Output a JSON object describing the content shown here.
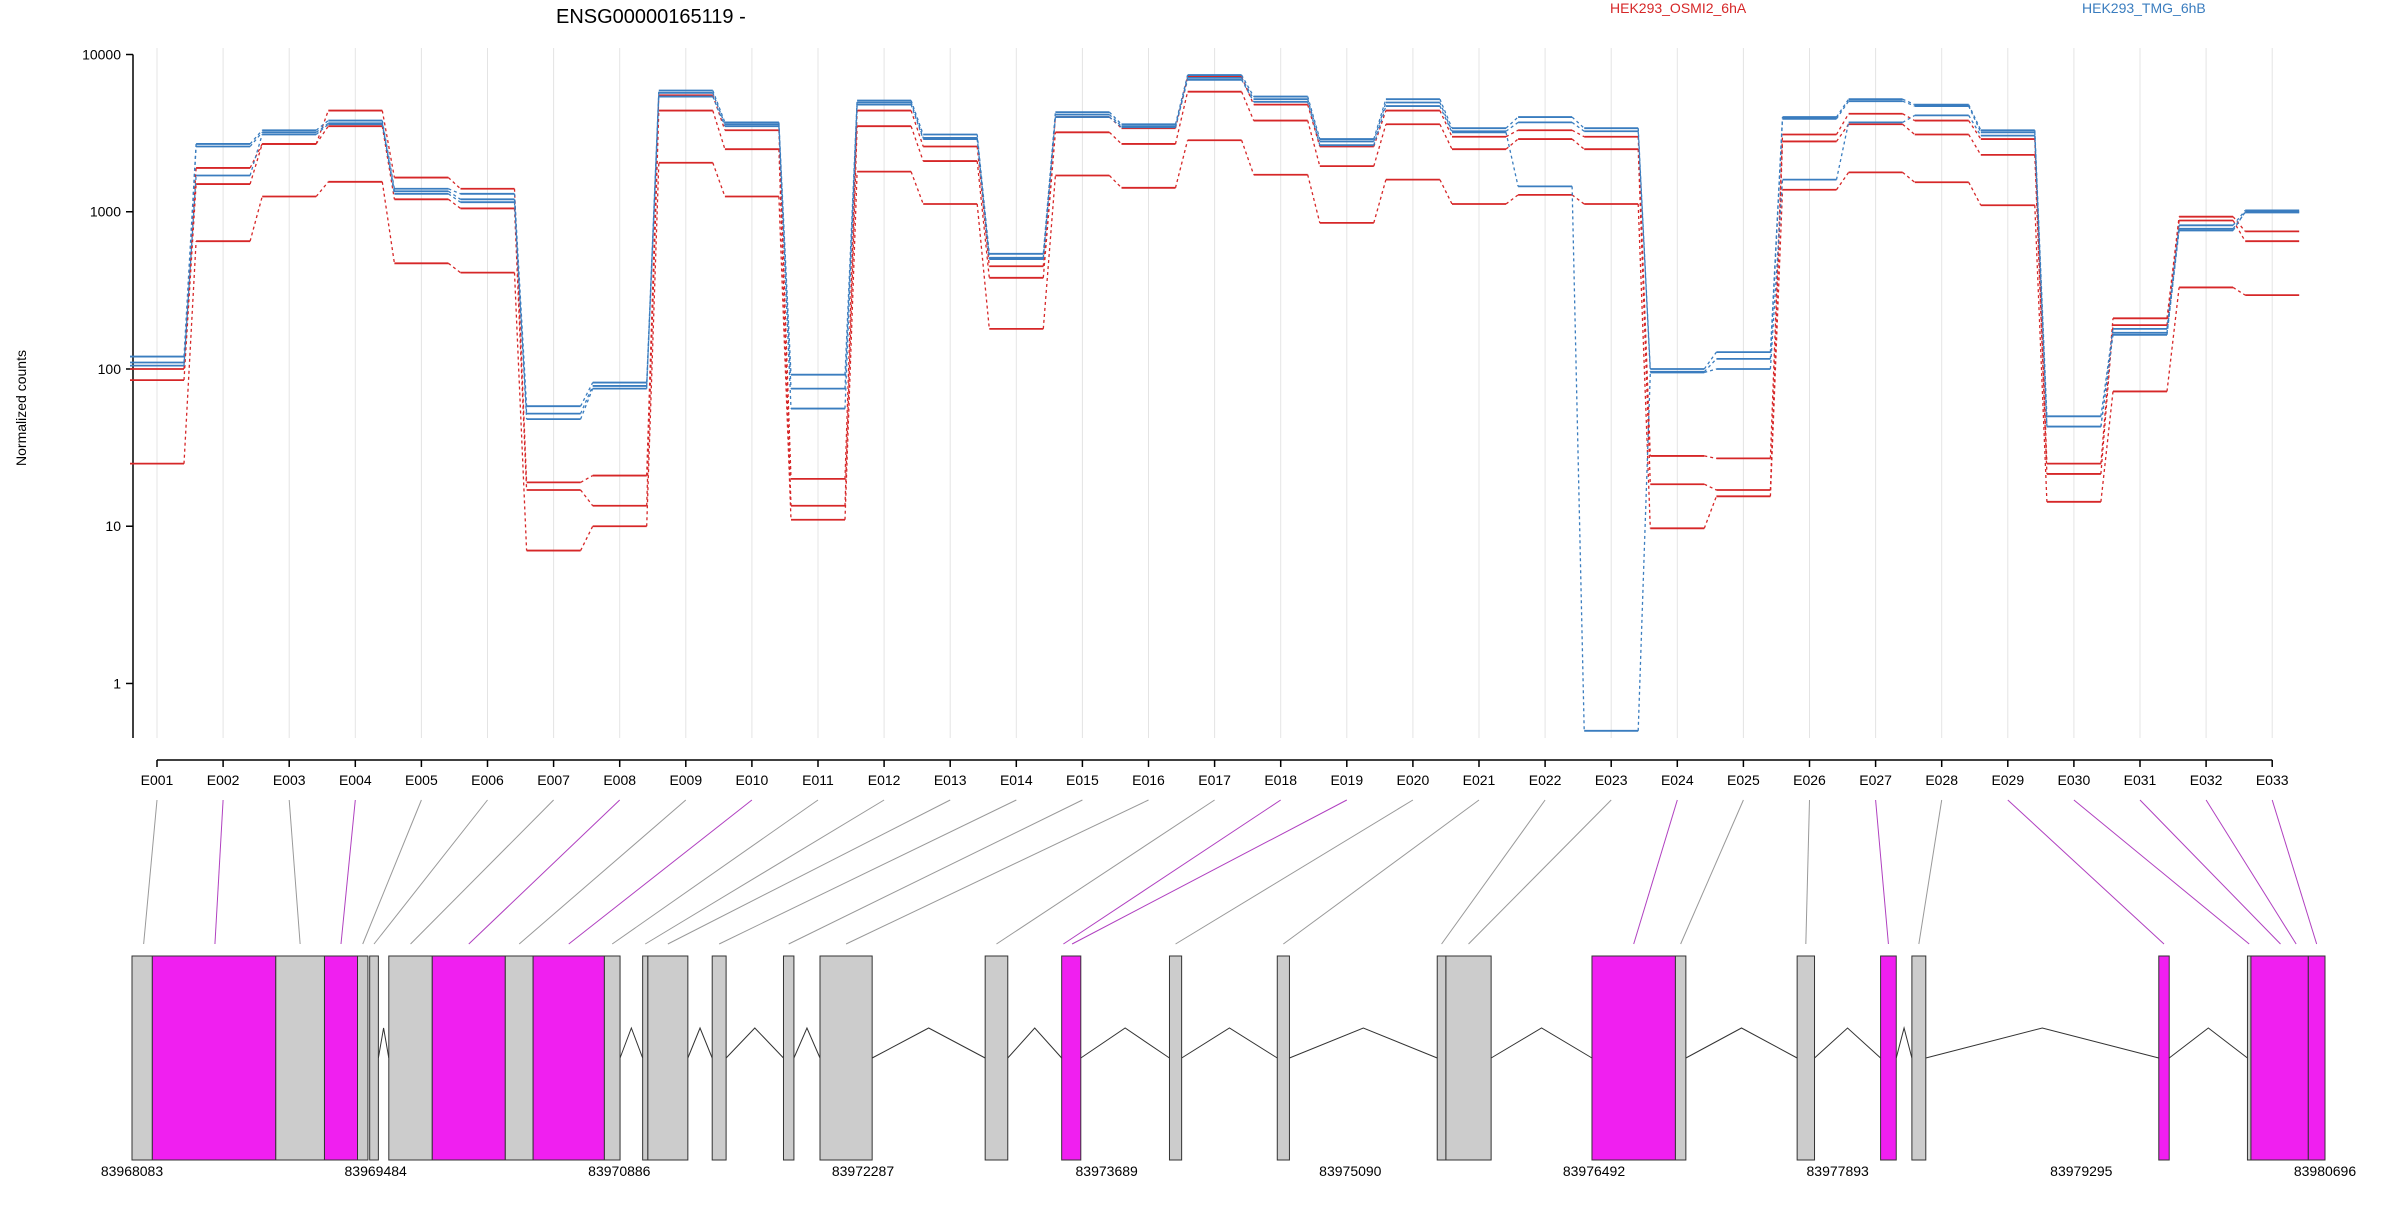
{
  "title": "ENSG00000165119 -",
  "legend": [
    {
      "name": "HEK293_OSMI2_6hA",
      "color": "#d62728"
    },
    {
      "name": "HEK293_TMG_6hB",
      "color": "#3a7dbf"
    }
  ],
  "colors": {
    "osmi": "#d62728",
    "tmg": "#3a7dbf",
    "exon_highlight": "#f01ff0",
    "exon_normal": "#cccccc",
    "grid": "#e4e4e4"
  },
  "chart_data": {
    "type": "line",
    "ylabel": "Normalized counts",
    "yscale": "log",
    "ylim": [
      0.45,
      11000
    ],
    "yticks": [
      {
        "value": 1,
        "label": "1"
      },
      {
        "value": 10,
        "label": "10"
      },
      {
        "value": 100,
        "label": "100"
      },
      {
        "value": 1000,
        "label": "1000"
      },
      {
        "value": 10000,
        "label": "10000"
      }
    ],
    "grid": "vertical",
    "categories": [
      "E001",
      "E002",
      "E003",
      "E004",
      "E005",
      "E006",
      "E007",
      "E008",
      "E009",
      "E010",
      "E011",
      "E012",
      "E013",
      "E014",
      "E015",
      "E016",
      "E017",
      "E018",
      "E019",
      "E020",
      "E021",
      "E022",
      "E023",
      "E024",
      "E025",
      "E026",
      "E027",
      "E028",
      "E029",
      "E030",
      "E031",
      "E032",
      "E033"
    ],
    "series": [
      {
        "group": "HEK293_OSMI2_6hA",
        "values": [
          100,
          1900,
          2700,
          4400,
          1650,
          1400,
          19,
          21,
          5500,
          3300,
          20,
          4400,
          2600,
          450,
          4000,
          3400,
          7200,
          4800,
          2600,
          4400,
          3000,
          3300,
          3000,
          28,
          27,
          3100,
          4200,
          3800,
          2900,
          25,
          210,
          930,
          750
        ]
      },
      {
        "group": "HEK293_OSMI2_6hA",
        "values": [
          85,
          1500,
          2700,
          3500,
          1200,
          1050,
          17,
          13.5,
          4400,
          2500,
          13.5,
          3500,
          2100,
          380,
          3200,
          2700,
          5800,
          3800,
          1950,
          3600,
          2500,
          2900,
          2500,
          18.5,
          17,
          2800,
          3600,
          3100,
          2300,
          21.5,
          190,
          880,
          650
        ]
      },
      {
        "group": "HEK293_OSMI2_6hA",
        "values": [
          25,
          650,
          1250,
          1550,
          470,
          410,
          7,
          10,
          2050,
          1250,
          11,
          1800,
          1120,
          180,
          1700,
          1420,
          2850,
          1720,
          850,
          1600,
          1120,
          1280,
          1120,
          9.7,
          15.5,
          1380,
          1780,
          1540,
          1100,
          14.3,
          72,
          330,
          295
        ]
      },
      {
        "group": "HEK293_TMG_6hB",
        "values": [
          120,
          2700,
          3300,
          3800,
          1400,
          1300,
          58,
          82,
          5900,
          3700,
          92,
          5100,
          3100,
          540,
          4300,
          3600,
          7400,
          5400,
          2900,
          5200,
          3400,
          4000,
          3400,
          100,
          128,
          4000,
          5200,
          4800,
          3300,
          50,
          180,
          820,
          1020
        ]
      },
      {
        "group": "HEK293_TMG_6hB",
        "values": [
          110,
          2600,
          3200,
          3650,
          1350,
          1200,
          52,
          78,
          5700,
          3600,
          75,
          4950,
          2950,
          500,
          4150,
          3500,
          7100,
          5200,
          2800,
          4950,
          3250,
          3700,
          3250,
          96,
          116,
          3900,
          5050,
          4700,
          3200,
          43,
          170,
          780,
          990
        ]
      },
      {
        "group": "HEK293_TMG_6hB",
        "values": [
          105,
          1700,
          3100,
          3600,
          1300,
          1150,
          48,
          75,
          5400,
          3500,
          56,
          4800,
          2900,
          510,
          4000,
          3450,
          6900,
          5000,
          2650,
          4700,
          3200,
          1450,
          0.5,
          95,
          100,
          1600,
          3700,
          4100,
          3050,
          43,
          165,
          760,
          1000
        ]
      }
    ],
    "exon_labels": [
      "E001",
      "E002",
      "E003",
      "E004",
      "E005",
      "E006",
      "E007",
      "E008",
      "E009",
      "E010",
      "E011",
      "E012",
      "E013",
      "E014",
      "E015",
      "E016",
      "E017",
      "E018",
      "E019",
      "E020",
      "E021",
      "E022",
      "E023",
      "E024",
      "E025",
      "E026",
      "E027",
      "E028",
      "E029",
      "E030",
      "E031",
      "E032",
      "E033"
    ],
    "genome_range": [
      83968083,
      83980696
    ],
    "genome_ticks": [
      "83968083",
      "83969484",
      "83970886",
      "83972287",
      "83973689",
      "83975090",
      "83976492",
      "83977893",
      "83979295",
      "83980696"
    ],
    "exons": [
      {
        "start": 83968083,
        "end": 83968200,
        "highlight": false
      },
      {
        "start": 83968200,
        "end": 83968910,
        "highlight": true
      },
      {
        "start": 83968910,
        "end": 83969190,
        "highlight": false
      },
      {
        "start": 83969190,
        "end": 83969380,
        "highlight": true
      },
      {
        "start": 83969380,
        "end": 83969440,
        "highlight": false
      },
      {
        "start": 83969450,
        "end": 83969500,
        "highlight": false
      },
      {
        "start": 83969560,
        "end": 83969810,
        "highlight": false
      },
      {
        "start": 83969810,
        "end": 83970230,
        "highlight": true
      },
      {
        "start": 83970230,
        "end": 83970390,
        "highlight": false
      },
      {
        "start": 83970390,
        "end": 83970800,
        "highlight": true
      },
      {
        "start": 83970800,
        "end": 83970890,
        "highlight": false
      },
      {
        "start": 83971020,
        "end": 83971050,
        "highlight": false
      },
      {
        "start": 83971050,
        "end": 83971280,
        "highlight": false
      },
      {
        "start": 83971420,
        "end": 83971500,
        "highlight": false
      },
      {
        "start": 83971830,
        "end": 83971890,
        "highlight": false
      },
      {
        "start": 83972040,
        "end": 83972340,
        "highlight": false
      },
      {
        "start": 83972990,
        "end": 83973120,
        "highlight": false
      },
      {
        "start": 83973430,
        "end": 83973540,
        "highlight": true
      },
      {
        "start": 83974050,
        "end": 83974120,
        "highlight": false
      },
      {
        "start": 83974670,
        "end": 83974740,
        "highlight": false
      },
      {
        "start": 83975590,
        "end": 83975640,
        "highlight": false
      },
      {
        "start": 83975640,
        "end": 83975900,
        "highlight": false
      },
      {
        "start": 83976480,
        "end": 83976960,
        "highlight": true
      },
      {
        "start": 83976960,
        "end": 83977020,
        "highlight": false
      },
      {
        "start": 83977660,
        "end": 83977760,
        "highlight": false
      },
      {
        "start": 83978140,
        "end": 83978230,
        "highlight": true
      },
      {
        "start": 83978320,
        "end": 83978400,
        "highlight": false
      },
      {
        "start": 83979740,
        "end": 83979800,
        "highlight": true
      },
      {
        "start": 83980250,
        "end": 83980270,
        "highlight": false
      },
      {
        "start": 83980270,
        "end": 83980600,
        "highlight": true
      },
      {
        "start": 83980600,
        "end": 83980696,
        "highlight": true
      }
    ],
    "connectors": [
      {
        "label": "E001",
        "exon": 83968150,
        "highlight": false
      },
      {
        "label": "E002",
        "exon": 83968560,
        "highlight": true
      },
      {
        "label": "E003",
        "exon": 83969050,
        "highlight": false
      },
      {
        "label": "E004",
        "exon": 83969285,
        "highlight": true
      },
      {
        "label": "E005",
        "exon": 83969410,
        "highlight": false
      },
      {
        "label": "E006",
        "exon": 83969475,
        "highlight": false
      },
      {
        "label": "E007",
        "exon": 83969685,
        "highlight": false
      },
      {
        "label": "E008",
        "exon": 83970020,
        "highlight": true
      },
      {
        "label": "E009",
        "exon": 83970310,
        "highlight": false
      },
      {
        "label": "E010",
        "exon": 83970595,
        "highlight": true
      },
      {
        "label": "E011",
        "exon": 83970845,
        "highlight": false
      },
      {
        "label": "E012",
        "exon": 83971035,
        "highlight": false
      },
      {
        "label": "E013",
        "exon": 83971165,
        "highlight": false
      },
      {
        "label": "E014",
        "exon": 83971460,
        "highlight": false
      },
      {
        "label": "E015",
        "exon": 83971860,
        "highlight": false
      },
      {
        "label": "E016",
        "exon": 83972190,
        "highlight": false
      },
      {
        "label": "E017",
        "exon": 83973055,
        "highlight": false
      },
      {
        "label": "E018",
        "exon": 83973440,
        "highlight": true
      },
      {
        "label": "E019",
        "exon": 83973490,
        "highlight": true
      },
      {
        "label": "E020",
        "exon": 83974085,
        "highlight": false
      },
      {
        "label": "E021",
        "exon": 83974705,
        "highlight": false
      },
      {
        "label": "E022",
        "exon": 83975615,
        "highlight": false
      },
      {
        "label": "E023",
        "exon": 83975770,
        "highlight": false
      },
      {
        "label": "E024",
        "exon": 83976720,
        "highlight": true
      },
      {
        "label": "E025",
        "exon": 83976990,
        "highlight": false
      },
      {
        "label": "E026",
        "exon": 83977710,
        "highlight": false
      },
      {
        "label": "E027",
        "exon": 83978185,
        "highlight": true
      },
      {
        "label": "E028",
        "exon": 83978360,
        "highlight": false
      },
      {
        "label": "E029",
        "exon": 83979770,
        "highlight": true
      },
      {
        "label": "E030",
        "exon": 83980260,
        "highlight": true
      },
      {
        "label": "E031",
        "exon": 83980440,
        "highlight": true
      },
      {
        "label": "E032",
        "exon": 83980530,
        "highlight": true
      },
      {
        "label": "E033",
        "exon": 83980648,
        "highlight": true
      }
    ]
  }
}
